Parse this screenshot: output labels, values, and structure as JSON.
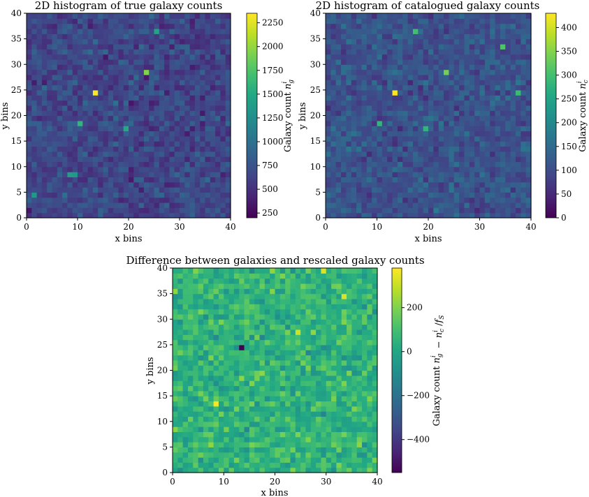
{
  "chart_data": [
    {
      "type": "heatmap",
      "title": "2D histogram of true galaxy counts",
      "xlabel": "x bins",
      "ylabel": "y bins",
      "xlim": [
        0,
        40
      ],
      "ylim": [
        0,
        40
      ],
      "xticks": [
        "0",
        "10",
        "20",
        "30",
        "40"
      ],
      "yticks": [
        "0",
        "5",
        "10",
        "15",
        "20",
        "25",
        "30",
        "35",
        "40"
      ],
      "colormap": "viridis",
      "grid": false,
      "colorbar": {
        "label": "Galaxy count n_g^i",
        "range": [
          200,
          2350
        ],
        "ticks": [
          "250",
          "500",
          "750",
          "1000",
          "1250",
          "1500",
          "1750",
          "2000",
          "2250"
        ]
      },
      "bins": [
        40,
        40
      ],
      "typical_range": [
        300,
        1000
      ],
      "hotspots": [
        {
          "x": 13.5,
          "y": 24.5,
          "value": 2350
        },
        {
          "x": 23.5,
          "y": 28.5,
          "value": 1950
        },
        {
          "x": 10.5,
          "y": 18.5,
          "value": 1600
        },
        {
          "x": 19.5,
          "y": 17.5,
          "value": 1500
        },
        {
          "x": 25.5,
          "y": 36.5,
          "value": 1450
        },
        {
          "x": 8.5,
          "y": 8.5,
          "value": 1400
        },
        {
          "x": 9.5,
          "y": 8.5,
          "value": 1350
        },
        {
          "x": 1.5,
          "y": 4.5,
          "value": 1350
        }
      ]
    },
    {
      "type": "heatmap",
      "title": "2D histogram of catalogued galaxy counts",
      "xlabel": "x bins",
      "ylabel": "y bins",
      "xlim": [
        0,
        40
      ],
      "ylim": [
        0,
        40
      ],
      "xticks": [
        "0",
        "10",
        "20",
        "30",
        "40"
      ],
      "yticks": [
        "0",
        "5",
        "10",
        "15",
        "20",
        "25",
        "30",
        "35",
        "40"
      ],
      "colormap": "viridis",
      "grid": false,
      "colorbar": {
        "label": "Galaxy count n_c^i",
        "range": [
          0,
          430
        ],
        "ticks": [
          "0",
          "50",
          "100",
          "150",
          "200",
          "250",
          "300",
          "350",
          "400"
        ]
      },
      "bins": [
        40,
        40
      ],
      "typical_range": [
        40,
        180
      ],
      "hotspots": [
        {
          "x": 13.5,
          "y": 24.5,
          "value": 430
        },
        {
          "x": 23.5,
          "y": 28.5,
          "value": 340
        },
        {
          "x": 17.5,
          "y": 36.5,
          "value": 300
        },
        {
          "x": 34.5,
          "y": 33.5,
          "value": 310
        },
        {
          "x": 37.5,
          "y": 24.5,
          "value": 290
        },
        {
          "x": 10.5,
          "y": 18.5,
          "value": 280
        },
        {
          "x": 19.5,
          "y": 17.5,
          "value": 280
        }
      ]
    },
    {
      "type": "heatmap",
      "title": "Difference between galaxies and rescaled galaxy counts",
      "xlabel": "x bins",
      "ylabel": "y bins",
      "xlim": [
        0,
        40
      ],
      "ylim": [
        0,
        40
      ],
      "xticks": [
        "0",
        "10",
        "20",
        "30",
        "40"
      ],
      "yticks": [
        "0",
        "5",
        "10",
        "15",
        "20",
        "25",
        "30",
        "35",
        "40"
      ],
      "colormap": "viridis",
      "grid": false,
      "colorbar": {
        "label": "Galaxy count n_g^i − n_c^i / f_S",
        "range": [
          -550,
          380
        ],
        "ticks": [
          "−400",
          "−200",
          "0",
          "200"
        ]
      },
      "bins": [
        40,
        40
      ],
      "typical_range": [
        -150,
        250
      ],
      "hotspots": [
        {
          "x": 13.5,
          "y": 24.5,
          "value": -550
        },
        {
          "x": 8.5,
          "y": 13.5,
          "value": 370
        },
        {
          "x": 29.5,
          "y": 39.5,
          "value": 330
        },
        {
          "x": 33.5,
          "y": 34.5,
          "value": 330
        },
        {
          "x": 24.5,
          "y": 27.5,
          "value": 310
        }
      ]
    }
  ]
}
